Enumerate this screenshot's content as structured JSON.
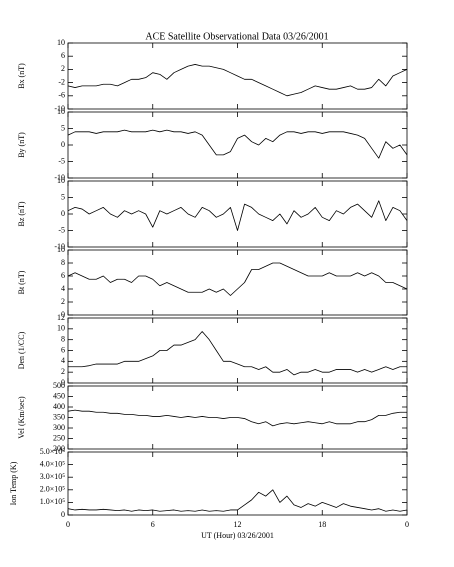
{
  "title": "ACE Satellite Observational Data   03/26/2001",
  "chart_data": [
    {
      "type": "line",
      "ylabel": "Bx (nT)",
      "ylim": [
        -10,
        10
      ],
      "yticks": [
        10,
        6,
        2,
        -2,
        -6,
        -10
      ],
      "color": "#000000",
      "x": [
        0,
        0.5,
        1,
        1.5,
        2,
        2.5,
        3,
        3.5,
        4,
        4.5,
        5,
        5.5,
        6,
        6.5,
        7,
        7.5,
        8,
        8.5,
        9,
        9.5,
        10,
        10.5,
        11,
        11.5,
        12,
        12.5,
        13,
        13.5,
        14,
        14.5,
        15,
        15.5,
        16,
        16.5,
        17,
        17.5,
        18,
        18.5,
        19,
        19.5,
        20,
        20.5,
        21,
        21.5,
        22,
        22.5,
        23,
        23.5,
        24
      ],
      "values": [
        -3,
        -3.5,
        -3,
        -3,
        -3,
        -2.5,
        -2.5,
        -3,
        -2,
        -1,
        -1,
        -0.5,
        1,
        0.5,
        -1,
        1,
        2,
        3,
        3.5,
        3,
        3,
        2.5,
        2,
        1,
        0,
        -1,
        -1,
        -2,
        -3,
        -4,
        -5,
        -6,
        -5.5,
        -5,
        -4,
        -3,
        -3.5,
        -4,
        -4,
        -3.5,
        -3,
        -4,
        -4,
        -3.5,
        -1,
        -3,
        0,
        1,
        2
      ]
    },
    {
      "type": "line",
      "ylabel": "By (nT)",
      "ylim": [
        -10,
        10
      ],
      "yticks": [
        10,
        5,
        0,
        -5,
        -10
      ],
      "color": "#000000",
      "x": [
        0,
        0.5,
        1,
        1.5,
        2,
        2.5,
        3,
        3.5,
        4,
        4.5,
        5,
        5.5,
        6,
        6.5,
        7,
        7.5,
        8,
        8.5,
        9,
        9.5,
        10,
        10.5,
        11,
        11.5,
        12,
        12.5,
        13,
        13.5,
        14,
        14.5,
        15,
        15.5,
        16,
        16.5,
        17,
        17.5,
        18,
        18.5,
        19,
        19.5,
        20,
        20.5,
        21,
        21.5,
        22,
        22.5,
        23,
        23.5,
        24
      ],
      "values": [
        3,
        4,
        4,
        4,
        3.5,
        4,
        4,
        4,
        4.5,
        4,
        4,
        4,
        4.5,
        4,
        4.5,
        4,
        4,
        3.5,
        4,
        3,
        0,
        -3,
        -3,
        -2,
        2,
        3,
        1,
        0,
        2,
        1,
        3,
        4,
        4,
        3.5,
        4,
        4,
        3.5,
        4,
        4,
        4,
        3.5,
        3,
        2,
        -1,
        -4,
        1,
        -1,
        0,
        -3
      ]
    },
    {
      "type": "line",
      "ylabel": "Bz (nT)",
      "ylim": [
        -10,
        10
      ],
      "yticks": [
        10,
        5,
        0,
        -5,
        -10
      ],
      "color": "#000000",
      "x": [
        0,
        0.5,
        1,
        1.5,
        2,
        2.5,
        3,
        3.5,
        4,
        4.5,
        5,
        5.5,
        6,
        6.5,
        7,
        7.5,
        8,
        8.5,
        9,
        9.5,
        10,
        10.5,
        11,
        11.5,
        12,
        12.5,
        13,
        13.5,
        14,
        14.5,
        15,
        15.5,
        16,
        16.5,
        17,
        17.5,
        18,
        18.5,
        19,
        19.5,
        20,
        20.5,
        21,
        21.5,
        22,
        22.5,
        23,
        23.5,
        24
      ],
      "values": [
        1,
        2,
        1.5,
        0,
        1,
        2,
        0,
        -1,
        1,
        0,
        1,
        0,
        -4,
        1,
        0,
        1,
        2,
        0,
        -1,
        2,
        1,
        -1,
        0,
        2,
        -5,
        3,
        2,
        0,
        -1,
        -2,
        0,
        -3,
        1,
        -1,
        0,
        2,
        -1,
        -2,
        1,
        0,
        2,
        3,
        1,
        -1,
        4,
        -2,
        2,
        1,
        -2
      ]
    },
    {
      "type": "line",
      "ylabel": "Bt (nT)",
      "ylim": [
        0,
        10
      ],
      "yticks": [
        10,
        8,
        6,
        4,
        2,
        0
      ],
      "color": "#000000",
      "x": [
        0,
        0.5,
        1,
        1.5,
        2,
        2.5,
        3,
        3.5,
        4,
        4.5,
        5,
        5.5,
        6,
        6.5,
        7,
        7.5,
        8,
        8.5,
        9,
        9.5,
        10,
        10.5,
        11,
        11.5,
        12,
        12.5,
        13,
        13.5,
        14,
        14.5,
        15,
        15.5,
        16,
        16.5,
        17,
        17.5,
        18,
        18.5,
        19,
        19.5,
        20,
        20.5,
        21,
        21.5,
        22,
        22.5,
        23,
        23.5,
        24
      ],
      "values": [
        6,
        6.5,
        6,
        5.5,
        5.5,
        6,
        5,
        5.5,
        5.5,
        5,
        6,
        6,
        5.5,
        4.5,
        5,
        4.5,
        4,
        3.5,
        3.5,
        3.5,
        4,
        3.5,
        4,
        3,
        4,
        5,
        7,
        7,
        7.5,
        8,
        8,
        7.5,
        7,
        6.5,
        6,
        6,
        6,
        6.5,
        6,
        6,
        6,
        6.5,
        6,
        6.5,
        6,
        5,
        5,
        4.5,
        4
      ]
    },
    {
      "type": "line",
      "ylabel": "Den (1/CC)",
      "ylim": [
        0,
        12
      ],
      "yticks": [
        12,
        10,
        8,
        6,
        4,
        2,
        0
      ],
      "color": "#000000",
      "x": [
        0,
        0.5,
        1,
        1.5,
        2,
        2.5,
        3,
        3.5,
        4,
        4.5,
        5,
        5.5,
        6,
        6.5,
        7,
        7.5,
        8,
        8.5,
        9,
        9.5,
        10,
        10.5,
        11,
        11.5,
        12,
        12.5,
        13,
        13.5,
        14,
        14.5,
        15,
        15.5,
        16,
        16.5,
        17,
        17.5,
        18,
        18.5,
        19,
        19.5,
        20,
        20.5,
        21,
        21.5,
        22,
        22.5,
        23,
        23.5,
        24
      ],
      "values": [
        3,
        3,
        3,
        3.2,
        3.5,
        3.5,
        3.5,
        3.5,
        4,
        4,
        4,
        4.5,
        5,
        6,
        6,
        7,
        7,
        7.5,
        8,
        9.5,
        8,
        6,
        4,
        4,
        3.5,
        3,
        3,
        2.5,
        3,
        2,
        2,
        2.5,
        1.5,
        2,
        2,
        2.5,
        2,
        2,
        2.5,
        2.5,
        2.5,
        2,
        2.5,
        2,
        2.5,
        3,
        2.5,
        3,
        3
      ]
    },
    {
      "type": "line",
      "ylabel": "Vel (Km/sec)",
      "ylim": [
        200,
        500
      ],
      "yticks": [
        500,
        450,
        400,
        350,
        300,
        250,
        200
      ],
      "color": "#000000",
      "x": [
        0,
        0.5,
        1,
        1.5,
        2,
        2.5,
        3,
        3.5,
        4,
        4.5,
        5,
        5.5,
        6,
        6.5,
        7,
        7.5,
        8,
        8.5,
        9,
        9.5,
        10,
        10.5,
        11,
        11.5,
        12,
        12.5,
        13,
        13.5,
        14,
        14.5,
        15,
        15.5,
        16,
        16.5,
        17,
        17.5,
        18,
        18.5,
        19,
        19.5,
        20,
        20.5,
        21,
        21.5,
        22,
        22.5,
        23,
        23.5,
        24
      ],
      "values": [
        380,
        385,
        380,
        380,
        375,
        375,
        370,
        370,
        365,
        365,
        360,
        360,
        355,
        355,
        360,
        355,
        350,
        355,
        350,
        355,
        350,
        350,
        345,
        350,
        350,
        345,
        330,
        320,
        330,
        310,
        320,
        325,
        320,
        325,
        330,
        325,
        320,
        330,
        320,
        320,
        320,
        330,
        330,
        340,
        360,
        360,
        370,
        375,
        375
      ]
    },
    {
      "type": "line",
      "ylabel": "Ion Temp (K)",
      "ylim": [
        0,
        500000
      ],
      "yticks": [
        {
          "value": 500000,
          "label": "5.0×10⁵"
        },
        {
          "value": 400000,
          "label": "4.0×10⁵"
        },
        {
          "value": 300000,
          "label": "3.0×10⁵"
        },
        {
          "value": 200000,
          "label": "2.0×10⁵"
        },
        {
          "value": 100000,
          "label": "1.0×10⁵"
        },
        0
      ],
      "color": "#000000",
      "xlabel": "UT (Hour)  03/26/2001",
      "xlim": [
        0,
        24
      ],
      "xticks": [
        0,
        6,
        12,
        18,
        {
          "value": 24,
          "label": "0"
        }
      ],
      "x": [
        0,
        0.5,
        1,
        1.5,
        2,
        2.5,
        3,
        3.5,
        4,
        4.5,
        5,
        5.5,
        6,
        6.5,
        7,
        7.5,
        8,
        8.5,
        9,
        9.5,
        10,
        10.5,
        11,
        11.5,
        12,
        12.5,
        13,
        13.5,
        14,
        14.5,
        15,
        15.5,
        16,
        16.5,
        17,
        17.5,
        18,
        18.5,
        19,
        19.5,
        20,
        20.5,
        21,
        21.5,
        22,
        22.5,
        23,
        23.5,
        24
      ],
      "values": [
        50000,
        40000,
        45000,
        40000,
        40000,
        45000,
        40000,
        35000,
        40000,
        30000,
        40000,
        35000,
        40000,
        30000,
        35000,
        40000,
        30000,
        35000,
        30000,
        40000,
        30000,
        35000,
        30000,
        40000,
        40000,
        80000,
        120000,
        180000,
        150000,
        200000,
        100000,
        150000,
        80000,
        60000,
        90000,
        70000,
        100000,
        80000,
        60000,
        90000,
        70000,
        60000,
        50000,
        40000,
        50000,
        30000,
        40000,
        30000,
        40000
      ]
    }
  ]
}
